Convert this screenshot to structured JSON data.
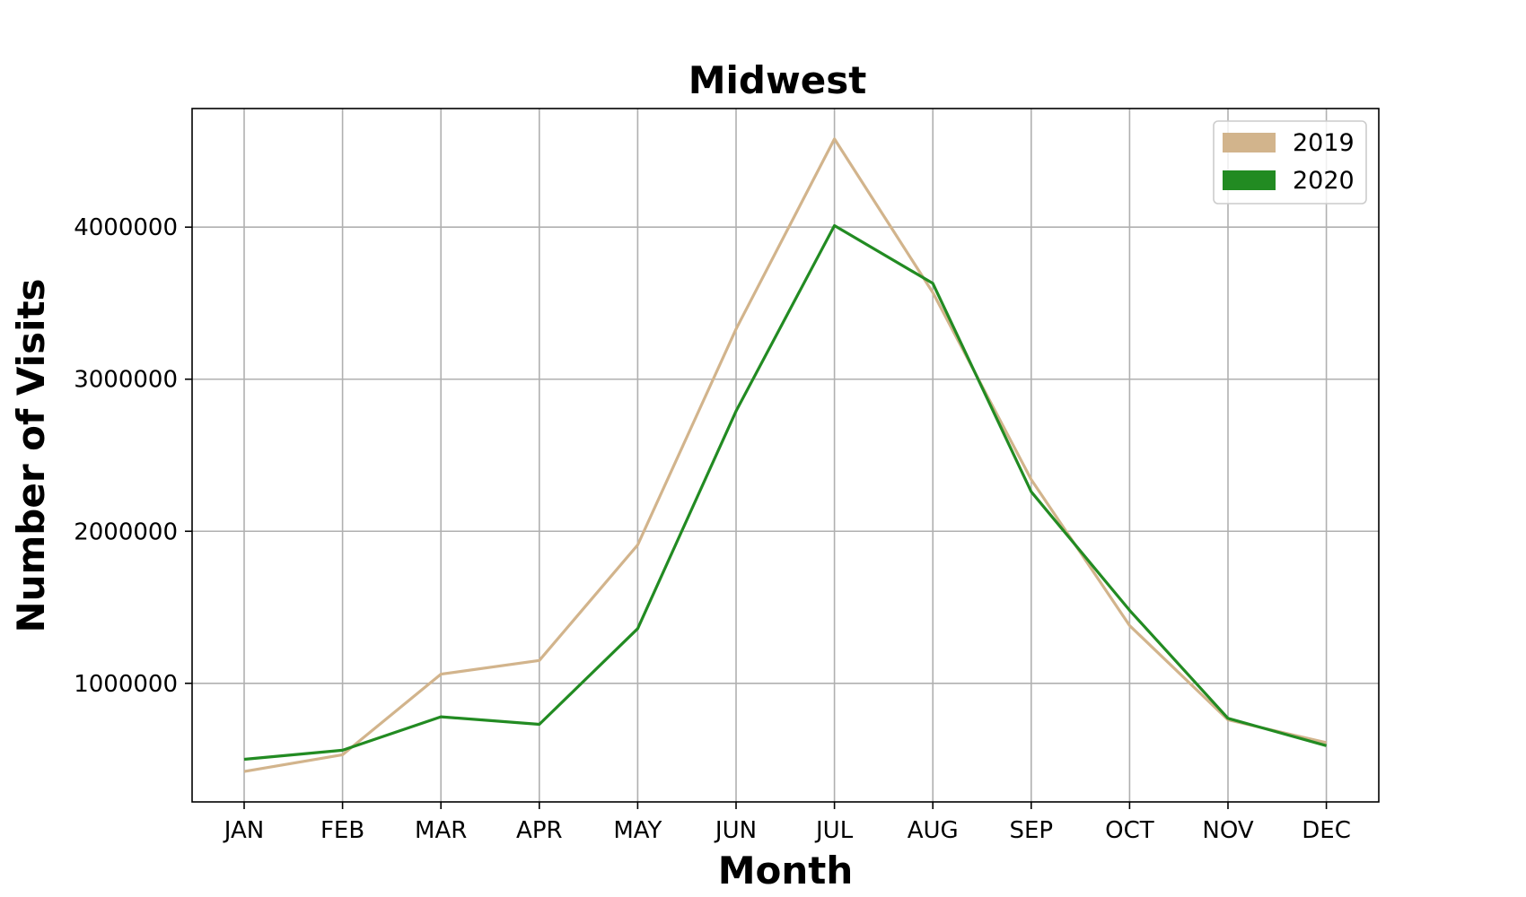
{
  "chart_data": {
    "type": "line",
    "title": "Midwest",
    "xlabel": "Month",
    "ylabel": "Number of Visits",
    "categories": [
      "JAN",
      "FEB",
      "MAR",
      "APR",
      "MAY",
      "JUN",
      "JUL",
      "AUG",
      "SEP",
      "OCT",
      "NOV",
      "DEC"
    ],
    "y_ticks": [
      1000000,
      2000000,
      3000000,
      4000000
    ],
    "y_tick_labels": [
      "1000000",
      "2000000",
      "3000000",
      "4000000"
    ],
    "ylim": [
      220000,
      4780000
    ],
    "grid": true,
    "legend_position": "top-right",
    "series": [
      {
        "name": "2019",
        "color": "#d2b48c",
        "values": [
          420000,
          530000,
          1060000,
          1150000,
          1910000,
          3330000,
          4580000,
          3570000,
          2340000,
          1380000,
          760000,
          610000
        ]
      },
      {
        "name": "2020",
        "color": "#228b22",
        "values": [
          500000,
          560000,
          780000,
          730000,
          1360000,
          2790000,
          4010000,
          3630000,
          2260000,
          1480000,
          770000,
          590000
        ]
      }
    ]
  }
}
